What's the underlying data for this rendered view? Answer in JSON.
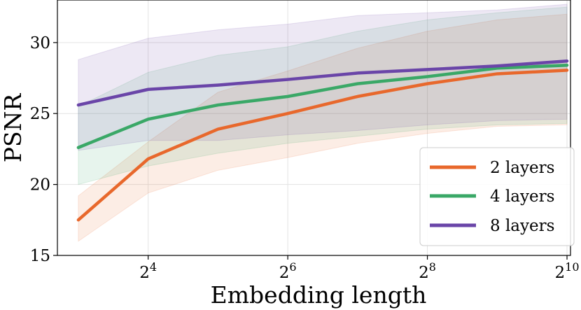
{
  "chart_data": {
    "type": "line",
    "title": "",
    "xlabel": "Embedding length",
    "ylabel": "PSNR",
    "x_scale": "log2",
    "x_exponents": [
      3,
      4,
      5,
      6,
      7,
      8,
      9,
      10
    ],
    "xlim_exponents": [
      2.7,
      10.05
    ],
    "ylim": [
      15,
      33
    ],
    "xticks": [
      {
        "base": "2",
        "exp": "4",
        "exp_value": 4
      },
      {
        "base": "2",
        "exp": "6",
        "exp_value": 6
      },
      {
        "base": "2",
        "exp": "8",
        "exp_value": 8
      },
      {
        "base": "2",
        "exp": "10",
        "exp_value": 10
      }
    ],
    "yticks": [
      {
        "label": "15",
        "value": 15
      },
      {
        "label": "20",
        "value": 20
      },
      {
        "label": "25",
        "value": 25
      },
      {
        "label": "30",
        "value": 30
      }
    ],
    "grid": true,
    "legend_position": "lower-right",
    "series": [
      {
        "name": "2 layers",
        "color": "#e8682c",
        "values": [
          17.5,
          21.8,
          23.9,
          25.0,
          26.2,
          27.1,
          27.8,
          28.05
        ],
        "band_lower": [
          16.0,
          19.4,
          21.0,
          21.9,
          22.9,
          23.6,
          24.1,
          24.2
        ],
        "band_upper": [
          19.2,
          23.0,
          26.5,
          28.0,
          29.6,
          30.8,
          31.6,
          32.0
        ]
      },
      {
        "name": "4 layers",
        "color": "#3aa867",
        "values": [
          22.6,
          24.6,
          25.6,
          26.2,
          27.1,
          27.6,
          28.2,
          28.4
        ],
        "band_lower": [
          20.0,
          21.3,
          22.2,
          22.9,
          23.4,
          23.9,
          24.2,
          24.3
        ],
        "band_upper": [
          25.5,
          27.9,
          29.1,
          29.7,
          30.8,
          31.6,
          32.1,
          32.5
        ]
      },
      {
        "name": "8 layers",
        "color": "#6a45a8",
        "values": [
          25.6,
          26.7,
          27.0,
          27.4,
          27.85,
          28.1,
          28.35,
          28.7
        ],
        "band_lower": [
          22.4,
          23.1,
          23.1,
          23.5,
          23.8,
          24.2,
          24.5,
          24.6
        ],
        "band_upper": [
          28.8,
          30.3,
          30.9,
          31.3,
          31.9,
          32.1,
          32.3,
          32.7
        ]
      }
    ]
  }
}
